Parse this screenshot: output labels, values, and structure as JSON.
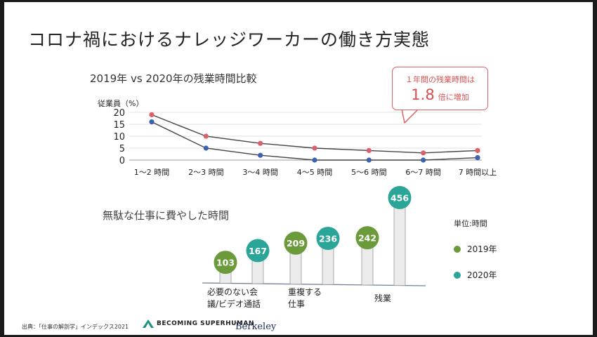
{
  "page_title": "コロナ禍におけるナレッジワーカーの働き方実態",
  "chart_data": [
    {
      "type": "line",
      "title": "2019年 vs 2020年の残業時間比較",
      "ylabel": "従業員（%）",
      "ylim": [
        0,
        20
      ],
      "yticks": [
        "0",
        "5",
        "10",
        "15",
        "20"
      ],
      "categories": [
        "1～2 時間",
        "2～3 時間",
        "3～4 時間",
        "4～5 時間",
        "5～6 時間",
        "6～7 時間",
        "7 時間以上"
      ],
      "series": [
        {
          "values": [
            19,
            10,
            7,
            5,
            4,
            3,
            4
          ],
          "color": "#d9616b"
        },
        {
          "values": [
            16,
            5,
            2,
            0,
            0,
            0,
            1
          ],
          "color": "#3a62b0"
        }
      ],
      "grid": true,
      "callout": {
        "line1": "１年間の残業時間は",
        "value": "1.8",
        "suffix": "倍に増加"
      }
    },
    {
      "type": "bar",
      "title": "無駄な仕事に費やした時間",
      "unit_label": "単位:時間",
      "groups": [
        {
          "label_lines": [
            "必要のない会",
            "議/ビデオ通話"
          ],
          "values": [
            103,
            167
          ]
        },
        {
          "label_lines": [
            "重複する",
            "仕事"
          ],
          "values": [
            209,
            236
          ]
        },
        {
          "label_lines": [
            "残業"
          ],
          "values": [
            242,
            456
          ]
        }
      ],
      "series": [
        {
          "name": "2019年",
          "color": "#6a9a3a"
        },
        {
          "name": "2020年",
          "color": "#2aa598"
        }
      ]
    }
  ],
  "footer": {
    "source": "出典：「仕事の解剖学」インデックス2021",
    "logo1": "BECOMING SUPERHUMAN",
    "logo2": "Berkeley"
  }
}
